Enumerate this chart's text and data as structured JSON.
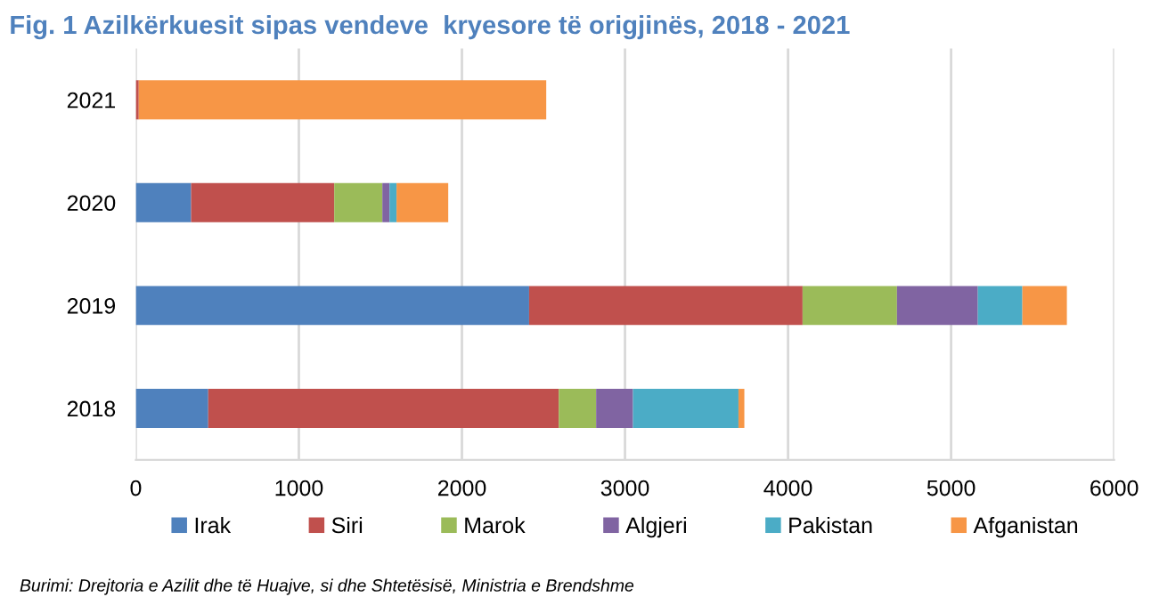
{
  "chart_data": {
    "type": "bar",
    "orientation": "horizontal",
    "stacked": true,
    "title": "Fig. 1 Azilkërkuesit sipas vendeve  kryesore të origjinës, 2018 - 2021",
    "categories": [
      "2021",
      "2020",
      "2019",
      "2018"
    ],
    "series": [
      {
        "name": "Irak",
        "color": "#4f81bd",
        "values": [
          0,
          339,
          2412,
          444
        ]
      },
      {
        "name": "Siri",
        "color": "#c0504d",
        "values": [
          18,
          878,
          1677,
          2150
        ]
      },
      {
        "name": "Marok",
        "color": "#9bbb59",
        "values": [
          0,
          295,
          579,
          229
        ]
      },
      {
        "name": "Algjeri",
        "color": "#8064a2",
        "values": [
          0,
          44,
          496,
          226
        ]
      },
      {
        "name": "Pakistan",
        "color": "#4bacc6",
        "values": [
          0,
          43,
          273,
          647
        ]
      },
      {
        "name": "Afganistan",
        "color": "#f79646",
        "values": [
          2499,
          317,
          273,
          36
        ]
      }
    ],
    "xlim": [
      0,
      6000
    ],
    "xticks": [
      0,
      1000,
      2000,
      3000,
      4000,
      5000,
      6000
    ],
    "grid": "x",
    "legend": "bottom",
    "annotations": [
      "Burimi: Drejtoria e Azilit dhe të Huajve, si dhe Shtetësisë, Ministria e Brendshme"
    ]
  }
}
